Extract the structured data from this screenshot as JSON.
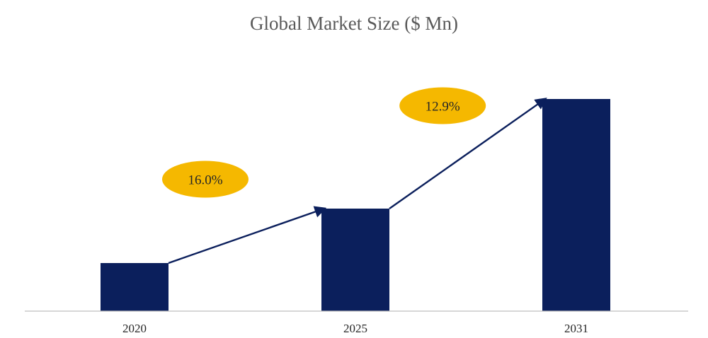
{
  "chart_data": {
    "type": "bar",
    "title": "Global Market Size ($ Mn)",
    "xlabel": "",
    "ylabel": "",
    "categories": [
      "2020",
      "2025",
      "2031"
    ],
    "values": [
      68,
      145,
      300
    ],
    "ylim": [
      0,
      330
    ],
    "grid": false,
    "legend": "none",
    "bar_color": "#0b1f5c",
    "annotations": [
      {
        "from": "2020",
        "to": "2025",
        "label": "16.0%",
        "color": "#f5b800"
      },
      {
        "from": "2025",
        "to": "2031",
        "label": "12.9%",
        "color": "#f5b800"
      }
    ],
    "arrow_color": "#0b1f5c"
  }
}
